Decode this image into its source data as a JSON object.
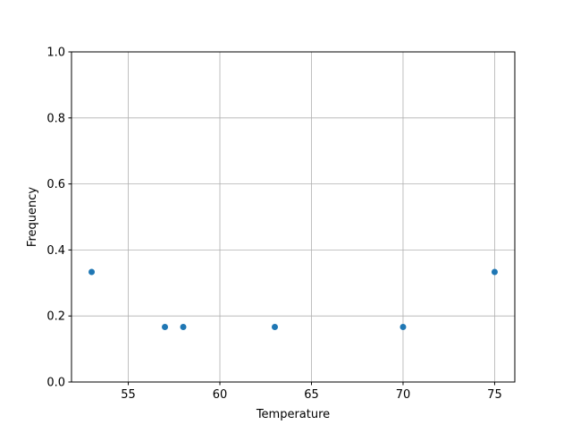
{
  "chart_data": {
    "type": "scatter",
    "title": "",
    "xlabel": "Temperature",
    "ylabel": "Frequency",
    "xlim": [
      51.9,
      76.1
    ],
    "ylim": [
      0,
      1.0
    ],
    "xticks": [
      55,
      60,
      65,
      70,
      75
    ],
    "xtick_labels": [
      "55",
      "60",
      "65",
      "70",
      "75"
    ],
    "yticks": [
      0,
      0.2,
      0.4,
      0.6,
      0.8,
      1.0
    ],
    "ytick_labels": [
      "0.0",
      "0.2",
      "0.4",
      "0.6",
      "0.8",
      "1.0"
    ],
    "grid": true,
    "marker_color": "#1f77b4",
    "points": [
      {
        "x": 53,
        "y": 0.3333
      },
      {
        "x": 57,
        "y": 0.1667
      },
      {
        "x": 58,
        "y": 0.1667
      },
      {
        "x": 63,
        "y": 0.1667
      },
      {
        "x": 70,
        "y": 0.1667
      },
      {
        "x": 75,
        "y": 0.3333
      }
    ]
  }
}
